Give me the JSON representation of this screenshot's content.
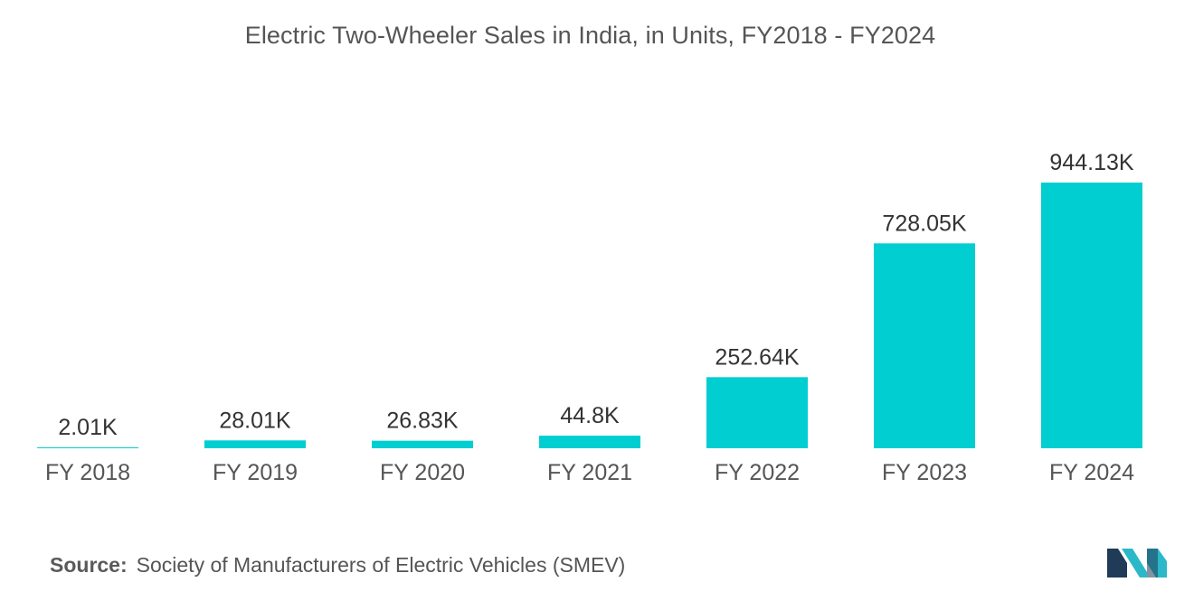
{
  "chart_data": {
    "type": "bar",
    "title": "Electric Two-Wheeler Sales in India, in Units, FY2018 - FY2024",
    "categories": [
      "FY 2018",
      "FY 2019",
      "FY 2020",
      "FY 2021",
      "FY 2022",
      "FY 2023",
      "FY 2024"
    ],
    "values": [
      2.01,
      28.01,
      26.83,
      44.8,
      252.64,
      728.05,
      944.13
    ],
    "value_labels": [
      "2.01K",
      "28.01K",
      "26.83K",
      "44.8K",
      "252.64K",
      "728.05K",
      "944.13K"
    ],
    "unit": "thousand units",
    "xlabel": "",
    "ylabel": "",
    "ylim": [
      0,
      1000
    ],
    "grid": false,
    "legend": "none",
    "bar_color": "#00ced1"
  },
  "footer": {
    "source_label": "Source:",
    "source_text": "Society of Manufacturers of Electric Vehicles (SMEV)"
  },
  "logo": {
    "icon": "brand-logo-icon",
    "colors": [
      "#1f3b57",
      "#2bb8c9"
    ]
  }
}
